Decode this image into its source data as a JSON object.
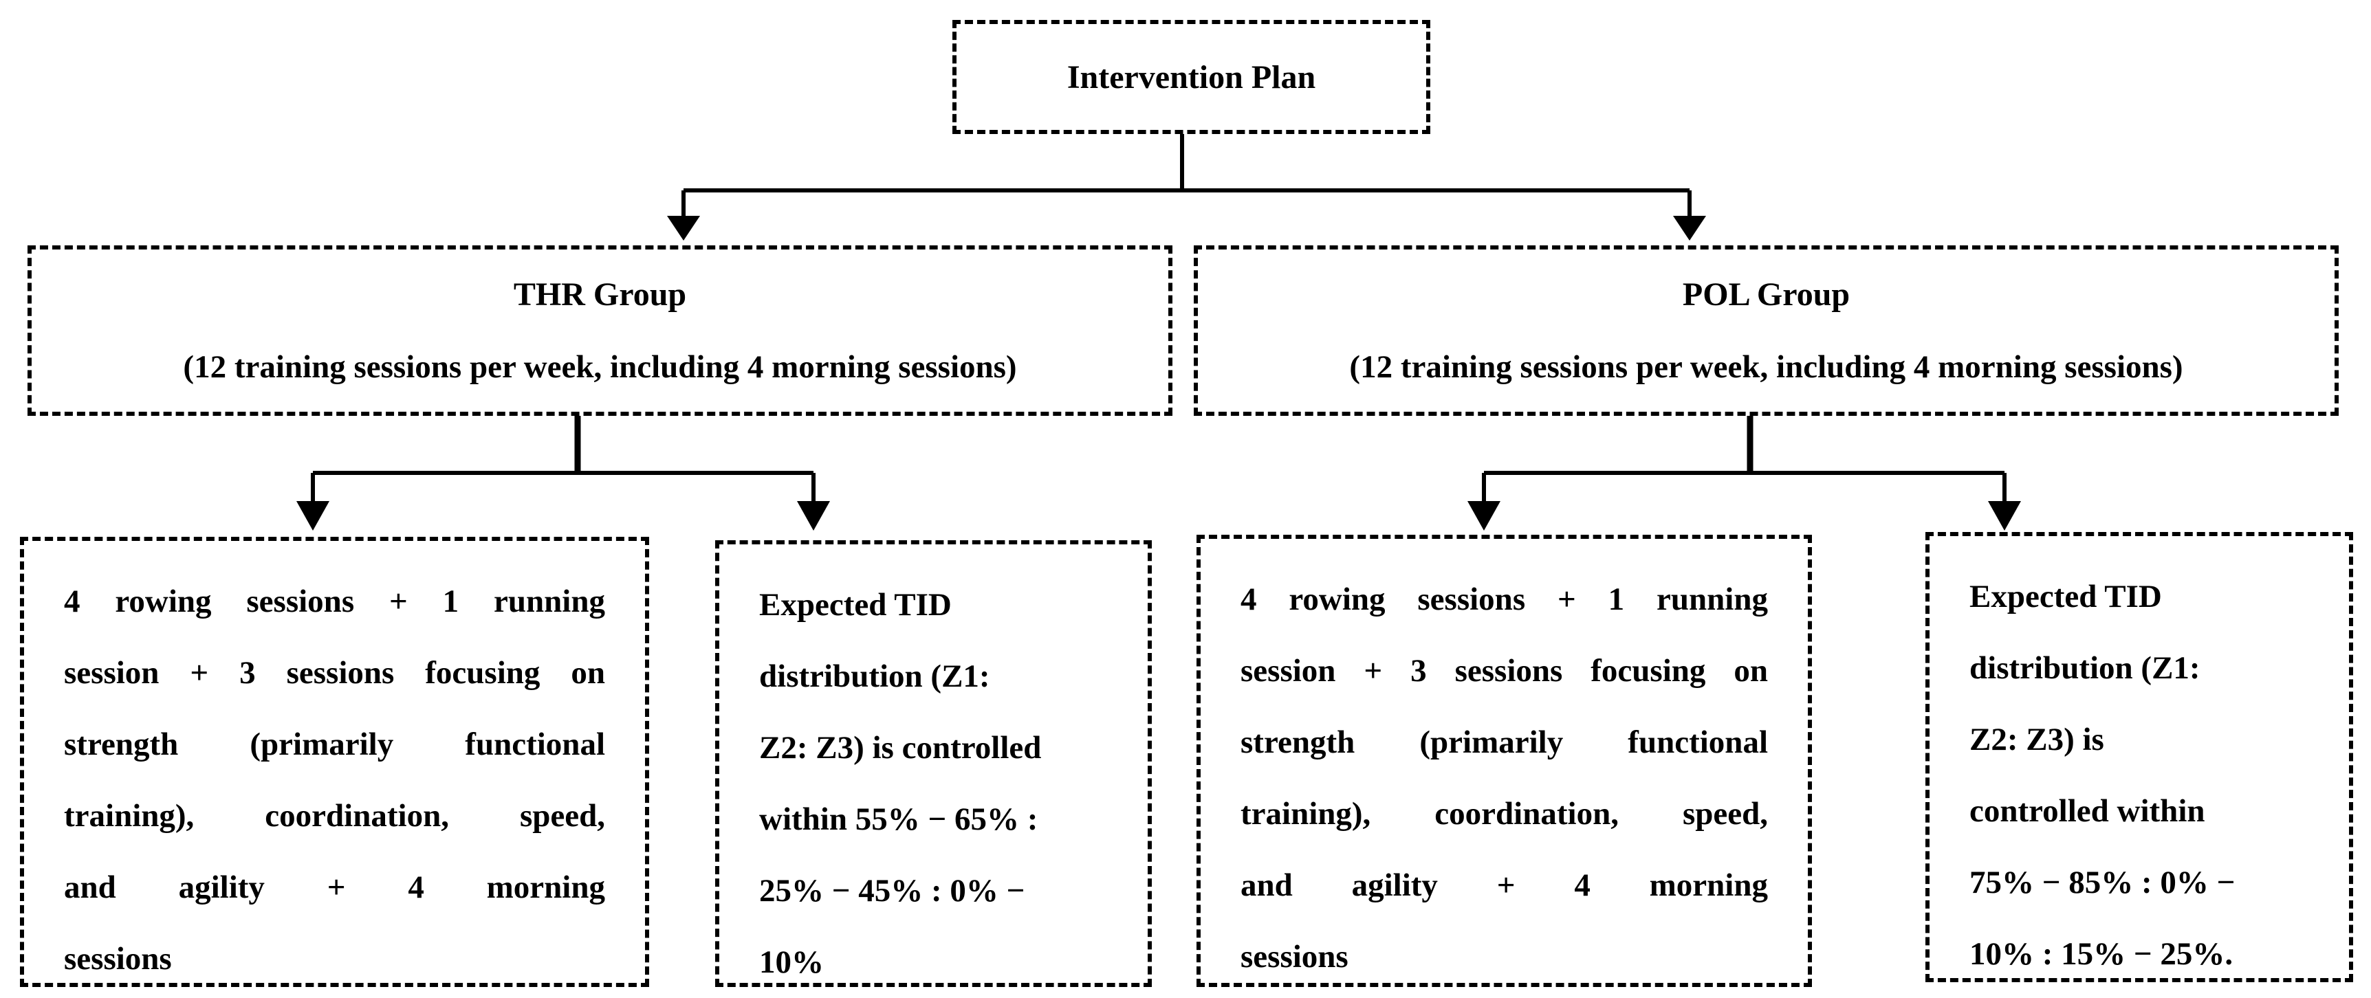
{
  "root": {
    "label": "Intervention Plan"
  },
  "groups": [
    {
      "title": "THR Group",
      "subtitle": "(12 training sessions per week, including 4 morning sessions)",
      "sessions_lines": [
        "4 rowing sessions + 1 running",
        "session + 3  sessions focusing on",
        "strength (primarily functional",
        "training), coordination, speed,",
        "and agility + 4 morning",
        "sessions"
      ],
      "tid_lines": [
        "Expected TID",
        "distribution (Z1:",
        "Z2: Z3) is controlled",
        "within 55% − 65% :",
        "25% − 45% : 0% −",
        "10%"
      ]
    },
    {
      "title": "POL Group",
      "subtitle": "(12 training sessions per week, including 4 morning sessions)",
      "sessions_lines": [
        "4 rowing sessions + 1 running",
        "session + 3 sessions focusing on",
        "strength (primarily functional",
        "training),  coordination, speed,",
        "and agility + 4 morning",
        "sessions"
      ],
      "tid_lines": [
        "Expected TID",
        "distribution (Z1:",
        "Z2: Z3) is",
        "controlled within",
        "75% − 85% : 0% −",
        "10% : 15% − 25%."
      ]
    }
  ]
}
